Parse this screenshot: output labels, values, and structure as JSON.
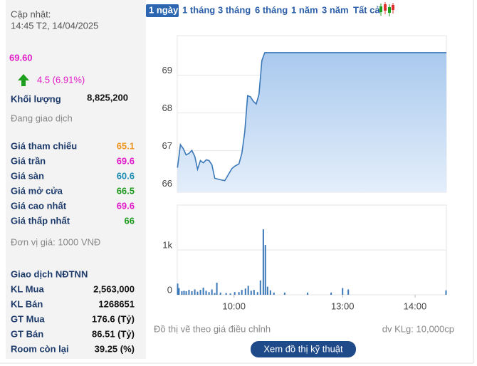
{
  "header": {
    "updated_label": "Cập nhật:",
    "updated_time": "14:45 T2, 14/04/2025"
  },
  "quote": {
    "price": "69.60",
    "price_color": "#e01cc8",
    "change": "4.5 (6.91%)",
    "volume_label": "Khối lượng",
    "volume": "8,825,200",
    "status": "Đang giao dịch"
  },
  "price_table": [
    {
      "label": "Giá tham chiếu",
      "value": "65.1",
      "color": "#f0961e"
    },
    {
      "label": "Giá trần",
      "value": "69.6",
      "color": "#e01cc8"
    },
    {
      "label": "Giá sàn",
      "value": "60.6",
      "color": "#1e8cb4"
    },
    {
      "label": "Giá mở cửa",
      "value": "66.5",
      "color": "#1e9a1e"
    },
    {
      "label": "Giá cao nhất",
      "value": "69.6",
      "color": "#e01cc8"
    },
    {
      "label": "Giá thấp nhất",
      "value": "66",
      "color": "#1e9a1e"
    }
  ],
  "unit_note": "Đơn vị giá: 1000 VNĐ",
  "foreign": {
    "title": "Giao dịch NĐTNN",
    "rows": [
      {
        "label": "KL Mua",
        "value": "2,563,000"
      },
      {
        "label": "KL Bán",
        "value": "1268651"
      },
      {
        "label": "GT Mua",
        "value": "176.6 (Tỷ)"
      },
      {
        "label": "GT Bán",
        "value": "86.51 (Tỷ)"
      },
      {
        "label": "Room còn lại",
        "value": "39.25 (%)"
      }
    ]
  },
  "tabs": [
    {
      "label": "1 ngày",
      "selected": true
    },
    {
      "label": "1 tháng",
      "selected": false
    },
    {
      "label": "3 tháng",
      "selected": false
    },
    {
      "label": "6 tháng",
      "selected": false
    },
    {
      "label": "1 năm",
      "selected": false
    },
    {
      "label": "3 năm",
      "selected": false
    },
    {
      "label": "Tất cả",
      "selected": false
    }
  ],
  "chart_data": [
    {
      "type": "area",
      "color": "#3a78b8",
      "x": [
        13.2,
        15.6,
        17.9,
        20.3,
        22.7,
        25.1,
        27.5,
        29.8,
        32.2,
        34.6,
        37.0,
        39.3,
        41.7,
        44.1,
        48.8,
        52.4,
        55.9,
        58.3,
        60.6,
        64.1,
        66.5,
        68.9,
        71.3,
        73.6,
        76.0,
        78.4,
        80.7,
        83.1,
        85.5,
        88,
        236
      ],
      "values": [
        66.55,
        67.16,
        67.06,
        66.89,
        66.93,
        67.01,
        66.85,
        66.51,
        66.74,
        66.68,
        66.76,
        66.74,
        66.63,
        66.27,
        66.23,
        66.21,
        66.4,
        66.53,
        66.59,
        66.65,
        66.93,
        67.5,
        68.46,
        68.43,
        68.31,
        68.24,
        68.5,
        69.39,
        69.6,
        69.6,
        69.6
      ],
      "xlim": [
        13,
        236
      ],
      "ylim": [
        65.9,
        70.05
      ],
      "yticks": [
        66,
        67,
        68,
        69
      ],
      "grid": true
    },
    {
      "type": "bar",
      "color": "#3a78b8",
      "x": [
        13.3,
        14.4,
        16.8,
        18.6,
        20.4,
        22.7,
        25.1,
        27.5,
        29.8,
        32.2,
        34.6,
        36.9,
        39.3,
        41.7,
        44.0,
        45.8,
        48.8,
        53.5,
        57.0,
        60.6,
        64.1,
        66.5,
        69.5,
        71.8,
        74.2,
        76.6,
        79.5,
        81.9,
        84.3,
        86.0,
        87.8,
        90.2,
        93.1,
        102,
        121,
        140.5,
        150,
        154.7,
        235.7
      ],
      "values": [
        250,
        150,
        80,
        90,
        80,
        110,
        80,
        120,
        70,
        110,
        160,
        90,
        60,
        120,
        40,
        270,
        50,
        40,
        30,
        60,
        60,
        110,
        140,
        200,
        90,
        110,
        60,
        320,
        1460,
        1110,
        180,
        100,
        50,
        50,
        50,
        50,
        150,
        120,
        100
      ],
      "xlim": [
        13,
        236
      ],
      "ylim": [
        0,
        2000
      ],
      "yticks": [
        0,
        {
          "value": 1000,
          "label": "1k"
        }
      ],
      "xticks": [
        {
          "value": 60,
          "label": "10:00"
        },
        {
          "value": 150,
          "label": "13:00"
        },
        {
          "value": 210,
          "label": "14:00"
        }
      ],
      "grid": true
    }
  ],
  "chart_notes": {
    "left": "Đồ thị vẽ theo giá điều chỉnh",
    "right": "dv KLg: 10,000cp"
  },
  "button": "Xem đồ thị kỹ thuật"
}
